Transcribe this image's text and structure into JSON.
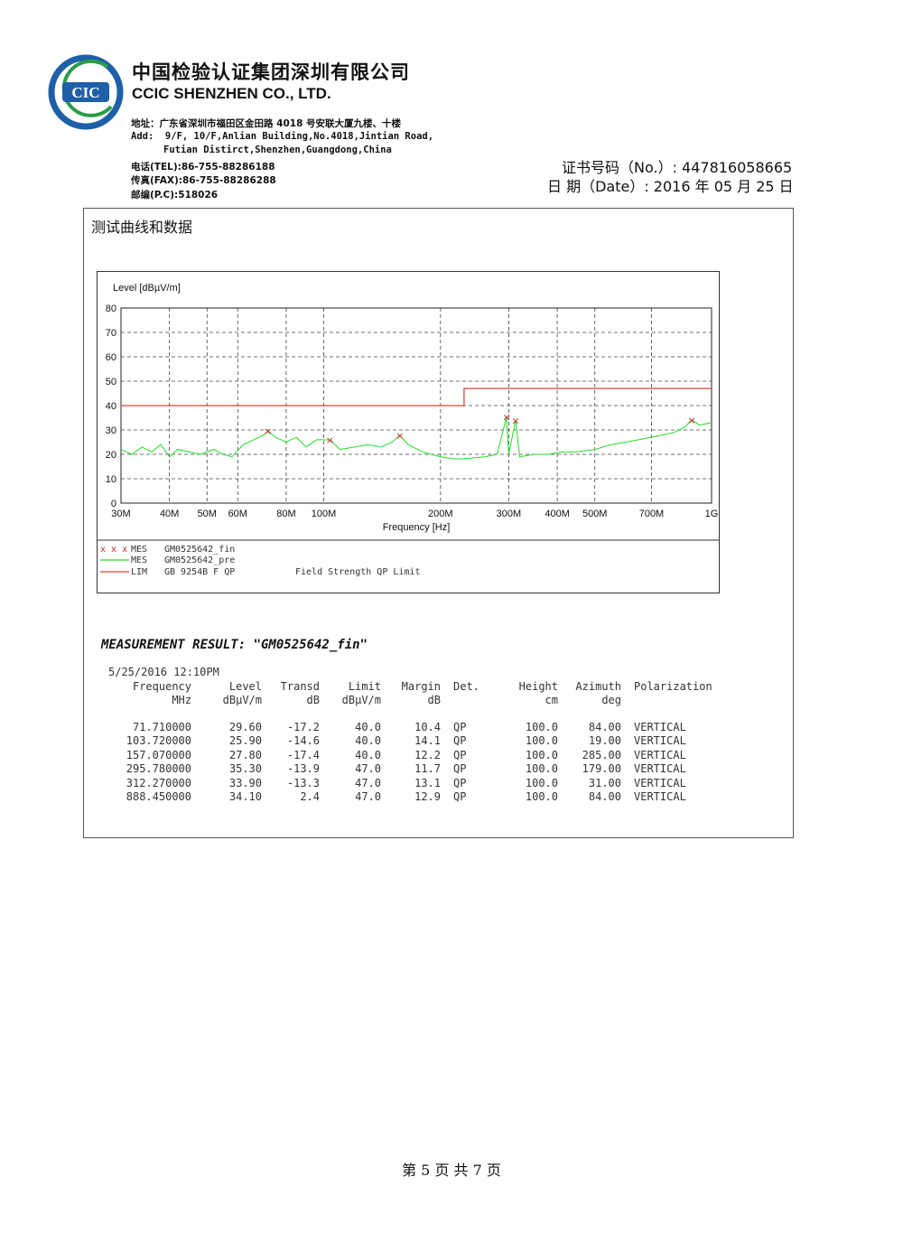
{
  "header": {
    "logo_text": "CIC",
    "company_cn": "中国检验认证集团深圳有限公司",
    "company_en": "CCIC SHENZHEN CO., LTD.",
    "address_cn": "地址：广东省深圳市福田区金田路 4018 号安联大厦九楼、十楼",
    "address_en_1": "Add:  9/F, 10/F,Anlian Building,No.4018,Jintian Road,",
    "address_en_2": "Futian Distirct,Shenzhen,Guangdong,China",
    "tel": "电话(TEL):86-755-88286188",
    "fax": "传真(FAX):86-755-88286288",
    "postcode": "邮编(P.C):518026",
    "cert_no": "证书号码（No.）: 447816058665",
    "cert_date": "日  期（Date）:   2016 年 05 月 25 日"
  },
  "section_title": "测试曲线和数据",
  "chart_data": {
    "type": "line",
    "ylabel": "Level [dBµV/m]",
    "xlabel": "Frequency [Hz]",
    "ylim": [
      0,
      80
    ],
    "xlim_hz": [
      30000000,
      1000000000
    ],
    "x_scale": "log",
    "y_ticks": [
      "0",
      "10",
      "20",
      "30",
      "40",
      "50",
      "60",
      "70",
      "80"
    ],
    "x_ticks": [
      {
        "label": "30M",
        "value": 30000000
      },
      {
        "label": "40M",
        "value": 40000000
      },
      {
        "label": "50M",
        "value": 50000000
      },
      {
        "label": "60M",
        "value": 60000000
      },
      {
        "label": "80M",
        "value": 80000000
      },
      {
        "label": "100M",
        "value": 100000000
      },
      {
        "label": "200M",
        "value": 200000000
      },
      {
        "label": "300M",
        "value": 300000000
      },
      {
        "label": "400M",
        "value": 400000000
      },
      {
        "label": "500M",
        "value": 500000000
      },
      {
        "label": "700M",
        "value": 700000000
      },
      {
        "label": "1G",
        "value": 1000000000
      }
    ],
    "grid": true,
    "limit_line": {
      "name": "GB 9254B F QP",
      "color": "#d9463e",
      "points": [
        [
          30,
          40
        ],
        [
          230,
          40
        ],
        [
          230,
          47
        ],
        [
          1000,
          47
        ]
      ]
    },
    "prescan": {
      "name": "GM0525642_pre",
      "color": "#22dd22",
      "points": [
        [
          30,
          22
        ],
        [
          32,
          20
        ],
        [
          34,
          23
        ],
        [
          36,
          21
        ],
        [
          38,
          24
        ],
        [
          40,
          19
        ],
        [
          42,
          22
        ],
        [
          45,
          21
        ],
        [
          48,
          20
        ],
        [
          52,
          22
        ],
        [
          55,
          20
        ],
        [
          58,
          19
        ],
        [
          62,
          24
        ],
        [
          66,
          26
        ],
        [
          70,
          28
        ],
        [
          72,
          29.6
        ],
        [
          75,
          27
        ],
        [
          80,
          25
        ],
        [
          85,
          27
        ],
        [
          90,
          23
        ],
        [
          96,
          26
        ],
        [
          104,
          25.9
        ],
        [
          110,
          22
        ],
        [
          120,
          23
        ],
        [
          130,
          24
        ],
        [
          140,
          23
        ],
        [
          150,
          25
        ],
        [
          157,
          27.8
        ],
        [
          165,
          24
        ],
        [
          180,
          21
        ],
        [
          200,
          19
        ],
        [
          220,
          18
        ],
        [
          240,
          18.5
        ],
        [
          260,
          19
        ],
        [
          280,
          20
        ],
        [
          295.8,
          35.3
        ],
        [
          300,
          20
        ],
        [
          312.3,
          33.9
        ],
        [
          320,
          19
        ],
        [
          350,
          20
        ],
        [
          380,
          20
        ],
        [
          410,
          21
        ],
        [
          450,
          21
        ],
        [
          500,
          22
        ],
        [
          550,
          24
        ],
        [
          600,
          25
        ],
        [
          650,
          26
        ],
        [
          700,
          27
        ],
        [
          750,
          28
        ],
        [
          800,
          29
        ],
        [
          850,
          31
        ],
        [
          888.5,
          34.1
        ],
        [
          930,
          32
        ],
        [
          1000,
          33
        ]
      ]
    },
    "final": {
      "name": "GM0525642_fin",
      "color": "#cc2222",
      "points": [
        [
          71.71,
          29.6
        ],
        [
          103.72,
          25.9
        ],
        [
          157.07,
          27.8
        ],
        [
          295.78,
          35.3
        ],
        [
          312.27,
          33.9
        ],
        [
          888.45,
          34.1
        ]
      ]
    },
    "legend": [
      {
        "marker": "x x x",
        "tag": "MES",
        "name": "GM0525642_fin",
        "note": ""
      },
      {
        "marker": "line",
        "tag": "MES",
        "name": "GM0525642_pre",
        "note": ""
      },
      {
        "marker": "line",
        "tag": "LIM",
        "name": "GB 9254B F QP",
        "note": "Field Strength QP Limit"
      }
    ]
  },
  "result": {
    "title": "MEASUREMENT RESULT:  \"GM0525642_fin\"",
    "timestamp": "5/25/2016   12:10PM",
    "headers_1": [
      "Frequency",
      "Level",
      "Transd",
      "Limit",
      "Margin",
      "Det.",
      "Height",
      "Azimuth",
      "Polarization"
    ],
    "headers_2": [
      "MHz",
      "dBµV/m",
      "dB",
      "dBµV/m",
      "dB",
      "",
      "cm",
      "deg",
      ""
    ],
    "rows": [
      [
        "71.710000",
        "29.60",
        "-17.2",
        "40.0",
        "10.4",
        "QP",
        "100.0",
        "84.00",
        "VERTICAL"
      ],
      [
        "103.720000",
        "25.90",
        "-14.6",
        "40.0",
        "14.1",
        "QP",
        "100.0",
        "19.00",
        "VERTICAL"
      ],
      [
        "157.070000",
        "27.80",
        "-17.4",
        "40.0",
        "12.2",
        "QP",
        "100.0",
        "285.00",
        "VERTICAL"
      ],
      [
        "295.780000",
        "35.30",
        "-13.9",
        "47.0",
        "11.7",
        "QP",
        "100.0",
        "179.00",
        "VERTICAL"
      ],
      [
        "312.270000",
        "33.90",
        "-13.3",
        "47.0",
        "13.1",
        "QP",
        "100.0",
        "31.00",
        "VERTICAL"
      ],
      [
        "888.450000",
        "34.10",
        "2.4",
        "47.0",
        "12.9",
        "QP",
        "100.0",
        "84.00",
        "VERTICAL"
      ]
    ]
  },
  "footer": "第  5 页   共  7 页"
}
